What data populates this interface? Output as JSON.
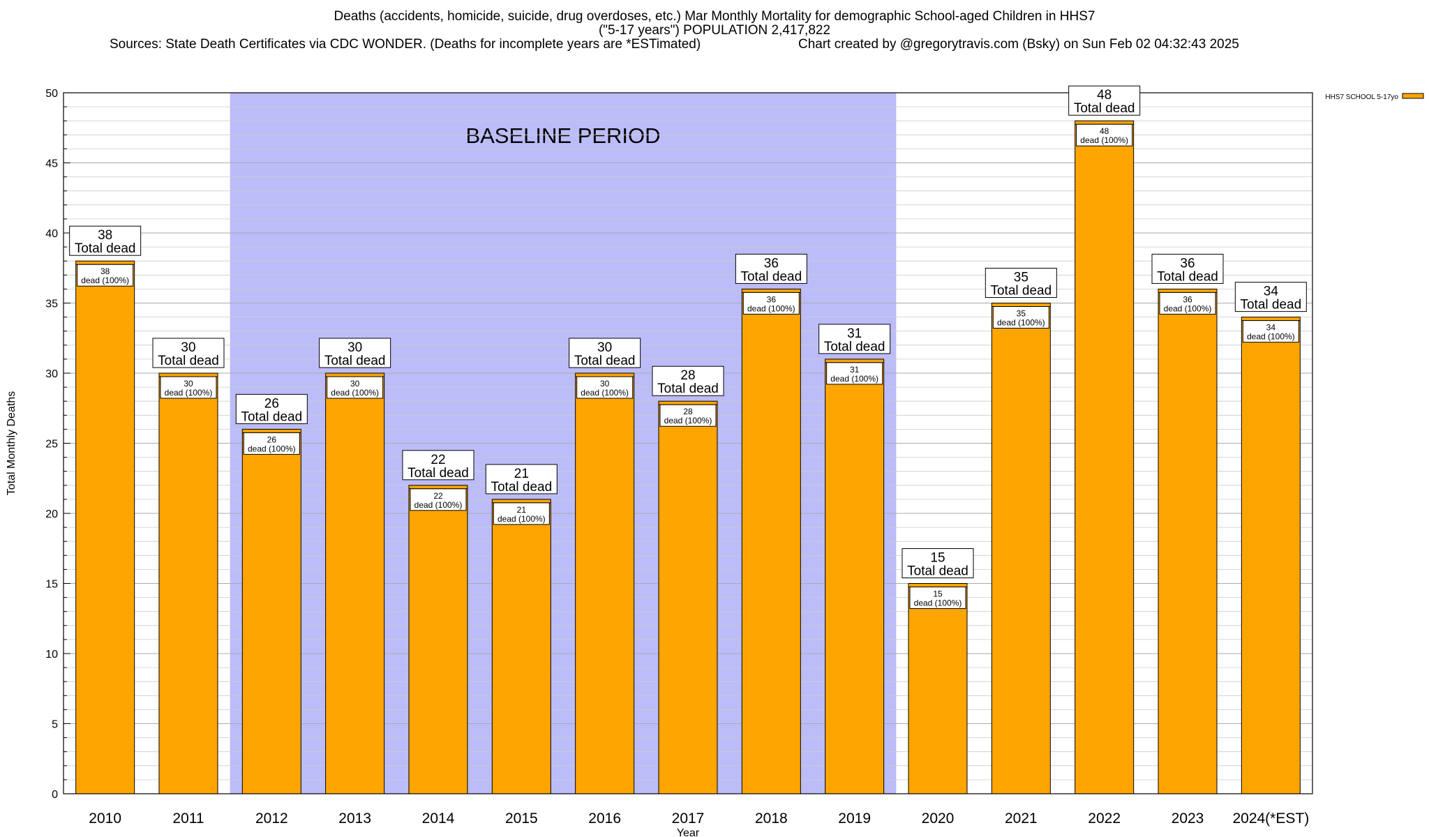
{
  "chart_data": {
    "type": "bar",
    "title": "Deaths (accidents, homicide, suicide, drug overdoses, etc.) Mar Monthly Mortality for demographic School-aged Children in HHS7",
    "subtitle": "(\"5-17 years\") POPULATION 2,417,822",
    "sources": "Sources: State Death Certificates via CDC WONDER. (Deaths for incomplete years are *ESTimated)",
    "credit": "Chart created by @gregorytravis.com (Bsky) on Sun Feb 02 04:32:43 2025",
    "xlabel": "Year",
    "ylabel": "Total Monthly Deaths",
    "ylim": [
      0,
      50
    ],
    "yticks": [
      0,
      5,
      10,
      15,
      20,
      25,
      30,
      35,
      40,
      45,
      50
    ],
    "grid": true,
    "legend_position": "top-right",
    "categories": [
      "2010",
      "2011",
      "2012",
      "2013",
      "2014",
      "2015",
      "2016",
      "2017",
      "2018",
      "2019",
      "2020",
      "2021",
      "2022",
      "2023",
      "2024(*EST)"
    ],
    "series": [
      {
        "name": "HHS7 SCHOOL 5-17yo",
        "color": "#ffa500",
        "values": [
          38,
          30,
          26,
          30,
          22,
          21,
          30,
          28,
          36,
          31,
          15,
          35,
          48,
          36,
          34
        ]
      }
    ],
    "total_label": "Total dead",
    "inner_label_suffix": "dead (100%)",
    "baseline": {
      "label": "BASELINE PERIOD",
      "start_category": "2012",
      "end_category": "2019",
      "color": "#bcbcf8"
    }
  }
}
